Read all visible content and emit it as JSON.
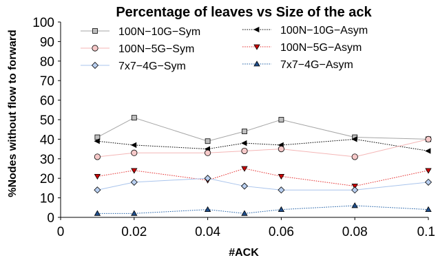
{
  "chart_data": {
    "type": "line",
    "title": "Percentage of leaves vs Size of the ack",
    "xlabel": "#ACK",
    "ylabel": "%Nodes without flow to forward",
    "xlim": [
      0,
      0.1
    ],
    "ylim": [
      0,
      100
    ],
    "xticks": [
      "0",
      "0.02",
      "0.04",
      "0.06",
      "0.08",
      "0.1"
    ],
    "yticks": [
      "0",
      "10",
      "20",
      "30",
      "40",
      "50",
      "60",
      "70",
      "80",
      "90",
      "100"
    ],
    "grid": false,
    "legend_position": "top",
    "x": [
      0.01,
      0.02,
      0.04,
      0.05,
      0.06,
      0.08,
      0.1
    ],
    "series": [
      {
        "name": "100N−10G−Sym",
        "values": [
          41,
          51,
          39,
          44,
          50,
          41,
          40
        ],
        "color": "#a6a6a6",
        "dash": "solid",
        "marker": "square",
        "marker_fill": "#bfbfbf"
      },
      {
        "name": "100N−10G−Asym",
        "values": [
          39,
          37,
          35,
          38,
          37,
          40,
          34
        ],
        "color": "#000000",
        "dash": "dotted",
        "marker": "tri-left",
        "marker_fill": "#000000"
      },
      {
        "name": "100N−5G−Sym",
        "values": [
          31,
          33,
          33,
          34,
          35,
          31,
          40
        ],
        "color": "#f4b6b6",
        "dash": "solid",
        "marker": "circle",
        "marker_fill": "#f6c9c9"
      },
      {
        "name": "100N−5G−Asym",
        "values": [
          21,
          24,
          19,
          25,
          21,
          16,
          24
        ],
        "color": "#e53030",
        "dash": "dotted",
        "marker": "tri-down",
        "marker_fill": "#cc0000"
      },
      {
        "name": "7x7−4G−Sym",
        "values": [
          14,
          18,
          20,
          16,
          14,
          14,
          18
        ],
        "color": "#a9c4ec",
        "dash": "solid",
        "marker": "diamond",
        "marker_fill": "#b9cff0"
      },
      {
        "name": "7x7−4G−Asym",
        "values": [
          2,
          2,
          4,
          2,
          4,
          6,
          4
        ],
        "color": "#1f5fa6",
        "dash": "dotted",
        "marker": "tri-up",
        "marker_fill": "#1f4e8c"
      }
    ]
  }
}
